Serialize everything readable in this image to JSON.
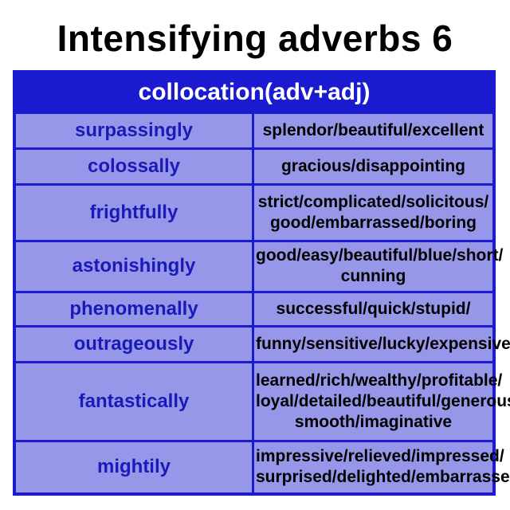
{
  "title": "Intensifying adverbs 6",
  "table": {
    "header": "collocation(adv+adj)",
    "rows": [
      {
        "adverb": "surpassingly",
        "adjectives": [
          "splendor/beautiful/excellent"
        ]
      },
      {
        "adverb": "colossally",
        "adjectives": [
          "gracious/disappointing"
        ]
      },
      {
        "adverb": "frightfully",
        "adjectives": [
          "strict/complicated/solicitous/",
          "good/embarrassed/boring"
        ]
      },
      {
        "adverb": "astonishingly",
        "adjectives": [
          "good/easy/beautiful/blue/short/",
          "cunning"
        ]
      },
      {
        "adverb": "phenomenally",
        "adjectives": [
          "successful/quick/stupid/"
        ]
      },
      {
        "adverb": "outrageously",
        "adjectives": [
          "funny/sensitive/lucky/expensive"
        ]
      },
      {
        "adverb": "fantastically",
        "adjectives": [
          "learned/rich/wealthy/profitable/",
          "loyal/detailed/beautiful/generous/",
          "smooth/imaginative"
        ]
      },
      {
        "adverb": "mightily",
        "adjectives": [
          "impressive/relieved/impressed/",
          "surprised/delighted/embarrassed"
        ]
      }
    ]
  },
  "colors": {
    "table_blue": "#1a1ad0",
    "adverb_text": "#1a1ab8",
    "watermark_orange": "#f7c98a",
    "watermark_blue": "#8fd0ee",
    "watermark_pink": "#f5a6c8"
  }
}
